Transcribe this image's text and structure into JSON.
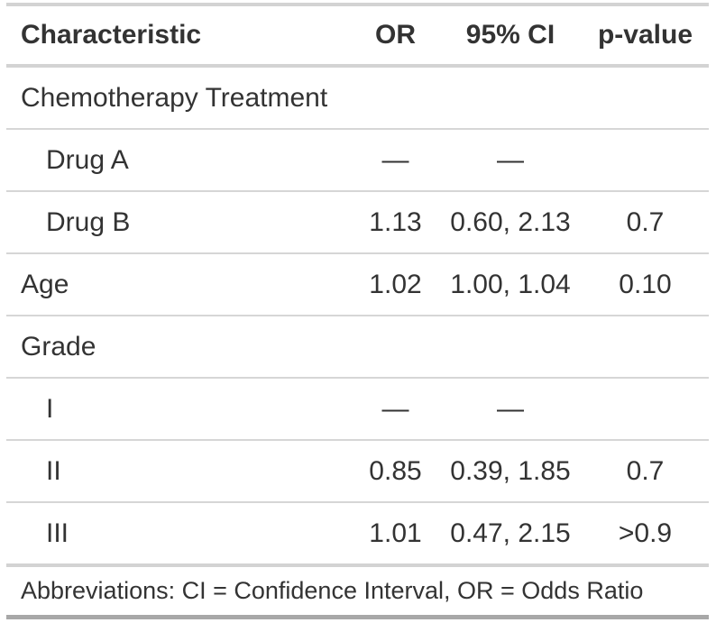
{
  "chart_data": {
    "type": "table",
    "columns": [
      {
        "label": "Characteristic",
        "align": "left"
      },
      {
        "label": "OR",
        "align": "center"
      },
      {
        "label": "95% CI",
        "align": "center"
      },
      {
        "label": "p-value",
        "align": "center"
      }
    ],
    "rows": [
      {
        "label": "Chemotherapy Treatment",
        "indent": 0,
        "or": "",
        "ci": "",
        "p_value": ""
      },
      {
        "label": "Drug A",
        "indent": 1,
        "or": "—",
        "ci": "—",
        "p_value": ""
      },
      {
        "label": "Drug B",
        "indent": 1,
        "or": "1.13",
        "ci": "0.60, 2.13",
        "p_value": "0.7"
      },
      {
        "label": "Age",
        "indent": 0,
        "or": "1.02",
        "ci": "1.00, 1.04",
        "p_value": "0.10"
      },
      {
        "label": "Grade",
        "indent": 0,
        "or": "",
        "ci": "",
        "p_value": ""
      },
      {
        "label": "I",
        "indent": 1,
        "or": "—",
        "ci": "—",
        "p_value": ""
      },
      {
        "label": "II",
        "indent": 1,
        "or": "0.85",
        "ci": "0.39, 1.85",
        "p_value": "0.7"
      },
      {
        "label": "III",
        "indent": 1,
        "or": "1.01",
        "ci": "0.47, 2.15",
        "p_value": ">0.9"
      }
    ],
    "footnote": "Abbreviations: CI = Confidence Interval, OR = Odds Ratio",
    "layout": {
      "grid": "horizontal-rules-only",
      "group_rows": [
        "Chemotherapy Treatment",
        "Grade"
      ],
      "reference_marker": "—"
    },
    "colors": {
      "text": "#333333",
      "rule_light": "#D3D3D3",
      "rule_row_separator": "#D6D6D6",
      "rule_bottom_dark": "#A8A8A8",
      "background": "#FFFFFF"
    }
  }
}
